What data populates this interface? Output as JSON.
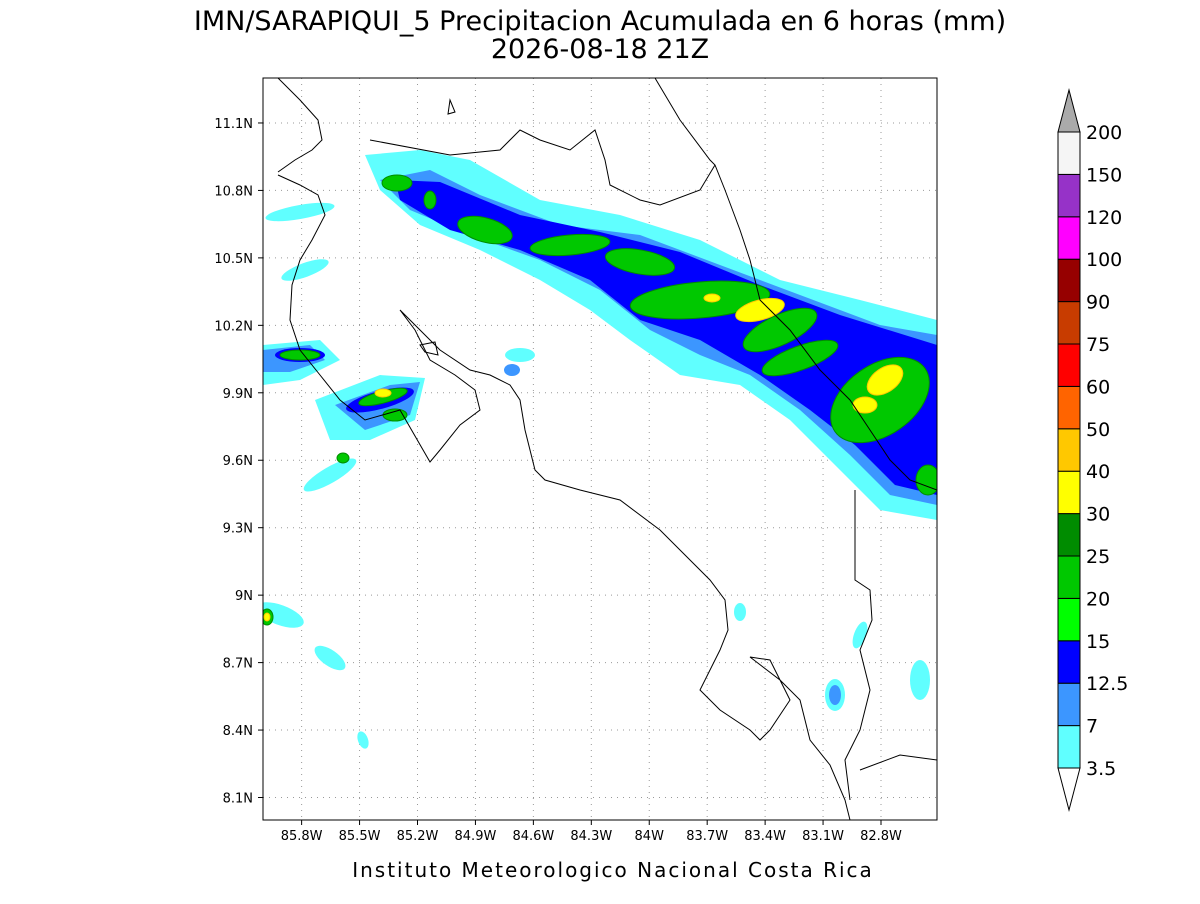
{
  "title": "IMN/SARAPIQUI_5 Precipitacion Acumulada en 6 horas (mm)",
  "subtitle": "2026-08-18 21Z",
  "footer": "Instituto Meteorologico Nacional Costa Rica",
  "map": {
    "lon_lim": [
      -86.0,
      -82.51
    ],
    "lat_lim": [
      8.0,
      11.3
    ],
    "lat_ticks": [
      {
        "value": 11.1,
        "label": "11.1N"
      },
      {
        "value": 10.8,
        "label": "10.8N"
      },
      {
        "value": 10.5,
        "label": "10.5N"
      },
      {
        "value": 10.2,
        "label": "10.2N"
      },
      {
        "value": 9.9,
        "label": "9.9N"
      },
      {
        "value": 9.6,
        "label": "9.6N"
      },
      {
        "value": 9.3,
        "label": "9.3N"
      },
      {
        "value": 9,
        "label": "9N"
      },
      {
        "value": 8.7,
        "label": "8.7N"
      },
      {
        "value": 8.4,
        "label": "8.4N"
      },
      {
        "value": 8.1,
        "label": "8.1N"
      }
    ],
    "lon_ticks": [
      {
        "value": -85.8,
        "label": "85.8W"
      },
      {
        "value": -85.5,
        "label": "85.5W"
      },
      {
        "value": -85.2,
        "label": "85.2W"
      },
      {
        "value": -84.9,
        "label": "84.9W"
      },
      {
        "value": -84.6,
        "label": "84.6W"
      },
      {
        "value": -84.3,
        "label": "84.3W"
      },
      {
        "value": -84,
        "label": "84W"
      },
      {
        "value": -83.7,
        "label": "83.7W"
      },
      {
        "value": -83.4,
        "label": "83.4W"
      },
      {
        "value": -83.1,
        "label": "83.1W"
      },
      {
        "value": -82.8,
        "label": "82.8W"
      }
    ],
    "grid": true
  },
  "colorbar": {
    "levels": [
      3.5,
      7,
      12.5,
      15,
      20,
      25,
      30,
      40,
      50,
      60,
      75,
      90,
      100,
      120,
      150,
      200
    ],
    "colors": [
      "#60ffff",
      "#3c96ff",
      "#0000ff",
      "#00ff00",
      "#00c800",
      "#008c00",
      "#ffff00",
      "#ffc800",
      "#ff6400",
      "#ff0000",
      "#c83c00",
      "#960000",
      "#ff00ff",
      "#9632c8",
      "#f5f5f5"
    ],
    "under_color": "#ffffff",
    "over_color": "#aaaaaa"
  }
}
